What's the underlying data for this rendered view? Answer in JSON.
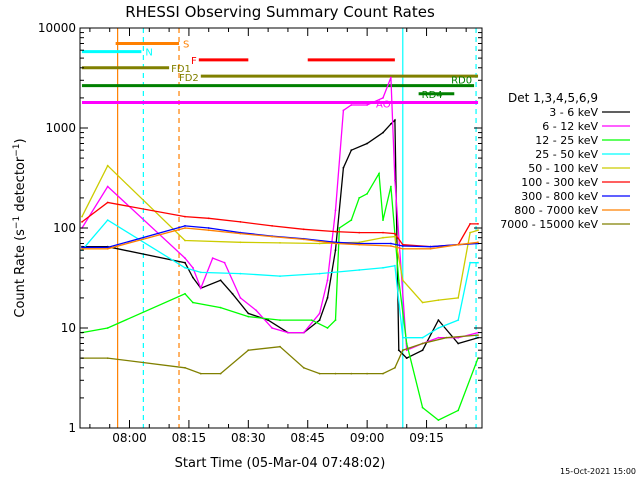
{
  "chart_data": {
    "type": "line",
    "title": "RHESSI Observing Summary Count Rates",
    "xlabel": "Start Time (05-Mar-04 07:48:02)",
    "ylabel": "Count Rate (s⁻¹ detector⁻¹)",
    "ylabel_parts": {
      "main": "Count Rate (s",
      "sup1": "−1",
      "mid": " detector",
      "sup2": "−1",
      "end": ")"
    },
    "yscale": "log",
    "ylim": [
      1,
      10000
    ],
    "xlim_minutes": [
      -0.5,
      101
    ],
    "x_ticks": [
      {
        "label": "08:00",
        "t": 12
      },
      {
        "label": "08:15",
        "t": 27
      },
      {
        "label": "08:30",
        "t": 42
      },
      {
        "label": "08:45",
        "t": 57
      },
      {
        "label": "09:00",
        "t": 72
      },
      {
        "label": "09:15",
        "t": 87
      }
    ],
    "y_ticks": [
      {
        "label": "1",
        "v": 1
      },
      {
        "label": "10",
        "v": 10
      },
      {
        "label": "100",
        "v": 100
      },
      {
        "label": "1000",
        "v": 1000
      },
      {
        "label": "10000",
        "v": 10000
      }
    ],
    "legend_title": "Det 1,3,4,5,6,9",
    "legend_position": "right",
    "series": [
      {
        "name": "3 - 6 keV",
        "color": "#000000",
        "points": [
          [
            0,
            65
          ],
          [
            6.5,
            65
          ],
          [
            26,
            45
          ],
          [
            28,
            32
          ],
          [
            30,
            25
          ],
          [
            35,
            30
          ],
          [
            38,
            22
          ],
          [
            42,
            14
          ],
          [
            47,
            12
          ],
          [
            52,
            9
          ],
          [
            56,
            9
          ],
          [
            60,
            12
          ],
          [
            62,
            20
          ],
          [
            64,
            60
          ],
          [
            66,
            400
          ],
          [
            68,
            600
          ],
          [
            72,
            700
          ],
          [
            76,
            900
          ],
          [
            78,
            1100
          ],
          [
            79,
            1200
          ],
          [
            80,
            6
          ],
          [
            82,
            5
          ],
          [
            86,
            6
          ],
          [
            90,
            12
          ],
          [
            95,
            7
          ],
          [
            100,
            8
          ]
        ]
      },
      {
        "name": "6 - 12 keV",
        "color": "#ff00ff",
        "points": [
          [
            0,
            100
          ],
          [
            6.5,
            260
          ],
          [
            26,
            50
          ],
          [
            28,
            40
          ],
          [
            30,
            25
          ],
          [
            33,
            50
          ],
          [
            36,
            45
          ],
          [
            40,
            20
          ],
          [
            44,
            15
          ],
          [
            48,
            10
          ],
          [
            52,
            9
          ],
          [
            56,
            9
          ],
          [
            60,
            14
          ],
          [
            62,
            30
          ],
          [
            64,
            150
          ],
          [
            66,
            1500
          ],
          [
            68,
            1700
          ],
          [
            72,
            1700
          ],
          [
            76,
            2000
          ],
          [
            78,
            3200
          ],
          [
            79,
            300
          ],
          [
            82,
            6
          ],
          [
            86,
            7
          ],
          [
            90,
            8
          ],
          [
            95,
            8
          ],
          [
            100,
            9
          ]
        ]
      },
      {
        "name": "12 - 25 keV",
        "color": "#00ff00",
        "points": [
          [
            0,
            9
          ],
          [
            6.5,
            10
          ],
          [
            26,
            22
          ],
          [
            28,
            18
          ],
          [
            35,
            16
          ],
          [
            42,
            13
          ],
          [
            50,
            12
          ],
          [
            58,
            12
          ],
          [
            62,
            10
          ],
          [
            64,
            12
          ],
          [
            65,
            100
          ],
          [
            68,
            120
          ],
          [
            70,
            200
          ],
          [
            72,
            220
          ],
          [
            75,
            350
          ],
          [
            76,
            120
          ],
          [
            78,
            260
          ],
          [
            80,
            30
          ],
          [
            82,
            7
          ],
          [
            86,
            1.6
          ],
          [
            90,
            1.2
          ],
          [
            95,
            1.5
          ],
          [
            100,
            5
          ]
        ]
      },
      {
        "name": "25 - 50 keV",
        "color": "#00ffff",
        "points": [
          [
            0,
            60
          ],
          [
            6.5,
            120
          ],
          [
            26,
            40
          ],
          [
            30,
            36
          ],
          [
            40,
            35
          ],
          [
            50,
            33
          ],
          [
            60,
            35
          ],
          [
            70,
            38
          ],
          [
            76,
            40
          ],
          [
            79,
            42
          ],
          [
            81,
            8
          ],
          [
            86,
            8
          ],
          [
            90,
            10
          ],
          [
            95,
            12
          ],
          [
            98,
            45
          ],
          [
            100,
            45
          ]
        ]
      },
      {
        "name": "50 - 100 keV",
        "color": "#cccc00",
        "points": [
          [
            0,
            130
          ],
          [
            6.5,
            420
          ],
          [
            26,
            75
          ],
          [
            40,
            72
          ],
          [
            50,
            71
          ],
          [
            60,
            70
          ],
          [
            70,
            72
          ],
          [
            76,
            80
          ],
          [
            79,
            82
          ],
          [
            81,
            30
          ],
          [
            86,
            18
          ],
          [
            90,
            19
          ],
          [
            95,
            20
          ],
          [
            98,
            90
          ],
          [
            100,
            95
          ]
        ]
      },
      {
        "name": "100 - 300 keV",
        "color": "#ff0000",
        "points": [
          [
            0,
            115
          ],
          [
            6.5,
            180
          ],
          [
            26,
            130
          ],
          [
            32,
            125
          ],
          [
            40,
            115
          ],
          [
            48,
            105
          ],
          [
            56,
            97
          ],
          [
            64,
            92
          ],
          [
            70,
            90
          ],
          [
            76,
            90
          ],
          [
            79,
            88
          ],
          [
            81,
            68
          ],
          [
            88,
            65
          ],
          [
            95,
            68
          ],
          [
            98,
            110
          ],
          [
            100,
            110
          ]
        ]
      },
      {
        "name": "300 - 800 keV",
        "color": "#0000ff",
        "points": [
          [
            0,
            64
          ],
          [
            6.5,
            64
          ],
          [
            26,
            105
          ],
          [
            32,
            100
          ],
          [
            40,
            90
          ],
          [
            48,
            83
          ],
          [
            56,
            78
          ],
          [
            64,
            72
          ],
          [
            70,
            70
          ],
          [
            78,
            70
          ],
          [
            81,
            66
          ],
          [
            88,
            65
          ],
          [
            95,
            68
          ],
          [
            100,
            70
          ]
        ]
      },
      {
        "name": "800 - 7000 keV",
        "color": "#ff8000",
        "points": [
          [
            0,
            62
          ],
          [
            6.5,
            62
          ],
          [
            26,
            100
          ],
          [
            32,
            95
          ],
          [
            40,
            88
          ],
          [
            48,
            82
          ],
          [
            56,
            77
          ],
          [
            64,
            70
          ],
          [
            70,
            68
          ],
          [
            78,
            66
          ],
          [
            81,
            62
          ],
          [
            88,
            62
          ],
          [
            95,
            68
          ],
          [
            100,
            72
          ]
        ]
      },
      {
        "name": "7000 - 15000 keV",
        "color": "#808000",
        "points": [
          [
            0,
            5
          ],
          [
            6.5,
            5
          ],
          [
            26,
            4
          ],
          [
            30,
            3.5
          ],
          [
            35,
            3.5
          ],
          [
            42,
            6
          ],
          [
            50,
            6.5
          ],
          [
            56,
            4
          ],
          [
            60,
            3.5
          ],
          [
            64,
            3.5
          ],
          [
            68,
            3.5
          ],
          [
            72,
            3.5
          ],
          [
            76,
            3.5
          ],
          [
            79,
            4
          ],
          [
            81,
            6
          ],
          [
            86,
            7
          ],
          [
            92,
            8
          ],
          [
            100,
            8.5
          ]
        ]
      }
    ],
    "flag_bars": [
      {
        "label": "S",
        "color": "#ff8000",
        "t0": 8.5,
        "t1": 24.5,
        "v": 7000
      },
      {
        "label": "N",
        "color": "#00ffff",
        "t0": 0,
        "t1": 15,
        "v": 5800
      },
      {
        "label": "F",
        "color": "#ff0000",
        "t0": 29.5,
        "t1": 42,
        "v": 4800,
        "t2": 57,
        "t3": 79
      },
      {
        "label": "FD1",
        "color": "#808000",
        "t0": 0,
        "t1": 22,
        "v": 4000
      },
      {
        "label": "FD2",
        "color": "#808000",
        "t0": 30,
        "t1": 100,
        "v": 3300
      },
      {
        "label": "RD0",
        "color": "#008000",
        "t0": 0,
        "t1": 99,
        "v": 2650
      },
      {
        "label": "RD4",
        "color": "#008000",
        "t0": 85,
        "t1": 94,
        "v": 2200
      },
      {
        "label": "AO",
        "color": "#ff00ff",
        "t0": 0,
        "t1": 100,
        "v": 1800
      }
    ],
    "vertical_markers": [
      {
        "t": 9,
        "color": "#ff8000",
        "style": "solid"
      },
      {
        "t": 15.5,
        "color": "#00ffff",
        "style": "dashed"
      },
      {
        "t": 24.5,
        "color": "#ff8000",
        "style": "dashed"
      },
      {
        "t": 81,
        "color": "#00ffff",
        "style": "solid"
      },
      {
        "t": 99.5,
        "color": "#00ffff",
        "style": "dashed"
      }
    ],
    "footer_date": "15-Oct-2021 15:00"
  }
}
